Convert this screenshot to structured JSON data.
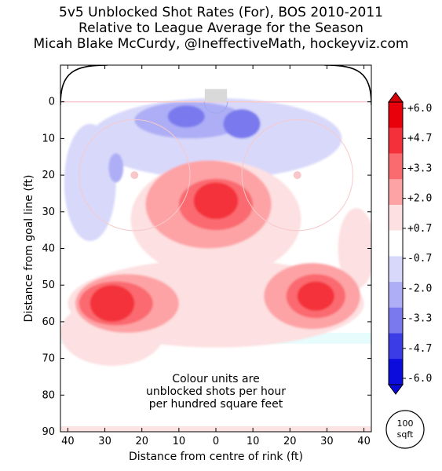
{
  "chart_data": {
    "type": "heatmap",
    "title": "5v5 Unblocked Shot Rates (For), BOS 2010-2011",
    "subtitle": "Relative to League Average for the Season",
    "credit": "Micah Blake McCurdy, @IneffectiveMath, hockeyviz.com",
    "xlabel": "Distance from centre of rink (ft)",
    "ylabel": "Distance from goal line (ft)",
    "xlim": [
      42,
      -42
    ],
    "ylim": [
      90,
      -10
    ],
    "xticks": [
      "40",
      "30",
      "20",
      "10",
      "0",
      "10",
      "20",
      "30",
      "40"
    ],
    "yticks": [
      "0",
      "10",
      "20",
      "30",
      "40",
      "50",
      "60",
      "70",
      "80",
      "90"
    ],
    "annotation": [
      "Colour units are",
      "unblocked shots per hour",
      "per hundred square feet"
    ],
    "colorbar": {
      "ticks": [
        "+6.0",
        "+4.7",
        "+3.3",
        "+2.0",
        "+0.7",
        "-0.7",
        "-2.0",
        "-3.3",
        "-4.7",
        "-6.0"
      ],
      "colors": [
        "#e8000b",
        "#f4313a",
        "#fa6b70",
        "#fda3a6",
        "#fde0e1",
        "#ffffff",
        "#d8d8fb",
        "#aeaef6",
        "#7a7aee",
        "#3c3ce6",
        "#0c0cdd"
      ]
    },
    "scale_marker": [
      "100",
      "sqft"
    ],
    "regions": [
      {
        "x": 0,
        "y": 10,
        "rx": 34,
        "ry": 11,
        "level": -1
      },
      {
        "x": 34,
        "y": 22,
        "rx": 7,
        "ry": 16,
        "level": -1
      },
      {
        "x": 7,
        "y": 5,
        "rx": 15,
        "ry": 5,
        "level": -2
      },
      {
        "x": 27,
        "y": 18,
        "rx": 2,
        "ry": 4,
        "level": -2
      },
      {
        "x": 8,
        "y": 4,
        "rx": 5,
        "ry": 3,
        "level": -3
      },
      {
        "x": -7,
        "y": 6,
        "rx": 5,
        "ry": 4,
        "level": -3
      },
      {
        "x": 0,
        "y": 32,
        "rx": 23,
        "ry": 16,
        "level": 1
      },
      {
        "x": 0,
        "y": 55,
        "rx": 40,
        "ry": 12,
        "level": 1
      },
      {
        "x": 28,
        "y": 63,
        "rx": 14,
        "ry": 9,
        "level": 1
      },
      {
        "x": -38,
        "y": 40,
        "rx": 5,
        "ry": 11,
        "level": 1
      },
      {
        "x": 2,
        "y": 28,
        "rx": 17,
        "ry": 12,
        "level": 2
      },
      {
        "x": 24,
        "y": 55,
        "rx": 14,
        "ry": 8,
        "level": 2
      },
      {
        "x": -26,
        "y": 53,
        "rx": 13,
        "ry": 9,
        "level": 2
      },
      {
        "x": 0,
        "y": 28,
        "rx": 10,
        "ry": 7,
        "level": 3
      },
      {
        "x": 27,
        "y": 55,
        "rx": 10,
        "ry": 6,
        "level": 3
      },
      {
        "x": -27,
        "y": 53,
        "rx": 8,
        "ry": 6,
        "level": 3
      },
      {
        "x": 0,
        "y": 27,
        "rx": 6,
        "ry": 5,
        "level": 4
      },
      {
        "x": 28,
        "y": 55,
        "rx": 6,
        "ry": 5,
        "level": 4
      },
      {
        "x": -27,
        "y": 53,
        "rx": 5,
        "ry": 4,
        "level": 4
      }
    ]
  }
}
